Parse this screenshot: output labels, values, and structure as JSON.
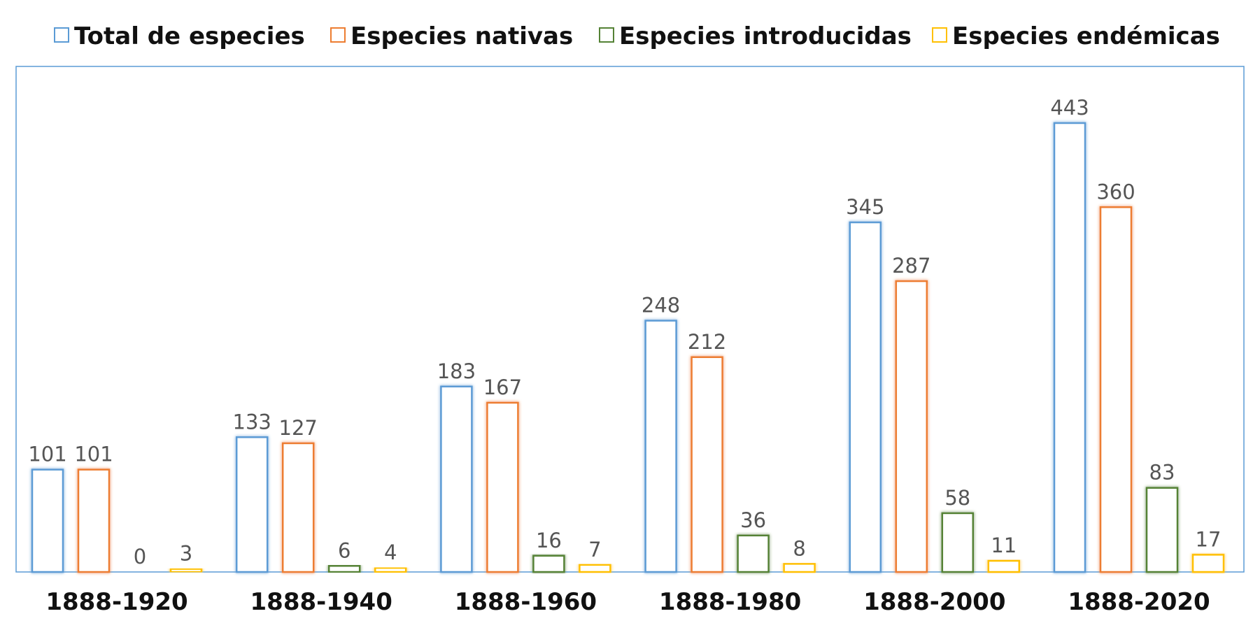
{
  "chart_data": {
    "type": "bar",
    "title": "",
    "xlabel": "",
    "ylabel": "",
    "categories": [
      "1888-1920",
      "1888-1940",
      "1888-1960",
      "1888-1980",
      "1888-2000",
      "1888-2020"
    ],
    "series": [
      {
        "name": "Total de especies",
        "color": "#5B9BD5",
        "values": [
          101,
          133,
          183,
          248,
          345,
          443
        ]
      },
      {
        "name": "Especies nativas",
        "color": "#ED7D31",
        "values": [
          101,
          127,
          167,
          212,
          287,
          360
        ]
      },
      {
        "name": "Especies introducidas",
        "color": "#548235",
        "values": [
          0,
          6,
          16,
          36,
          58,
          83
        ]
      },
      {
        "name": "Especies endémicas",
        "color": "#FFC000",
        "values": [
          3,
          4,
          7,
          8,
          11,
          17
        ]
      }
    ],
    "ylim": [
      0,
      500
    ],
    "grid": false,
    "legend_position": "top",
    "data_labels": true,
    "bar_style": "outlined",
    "plot_border_color": "#5B9BD5"
  }
}
